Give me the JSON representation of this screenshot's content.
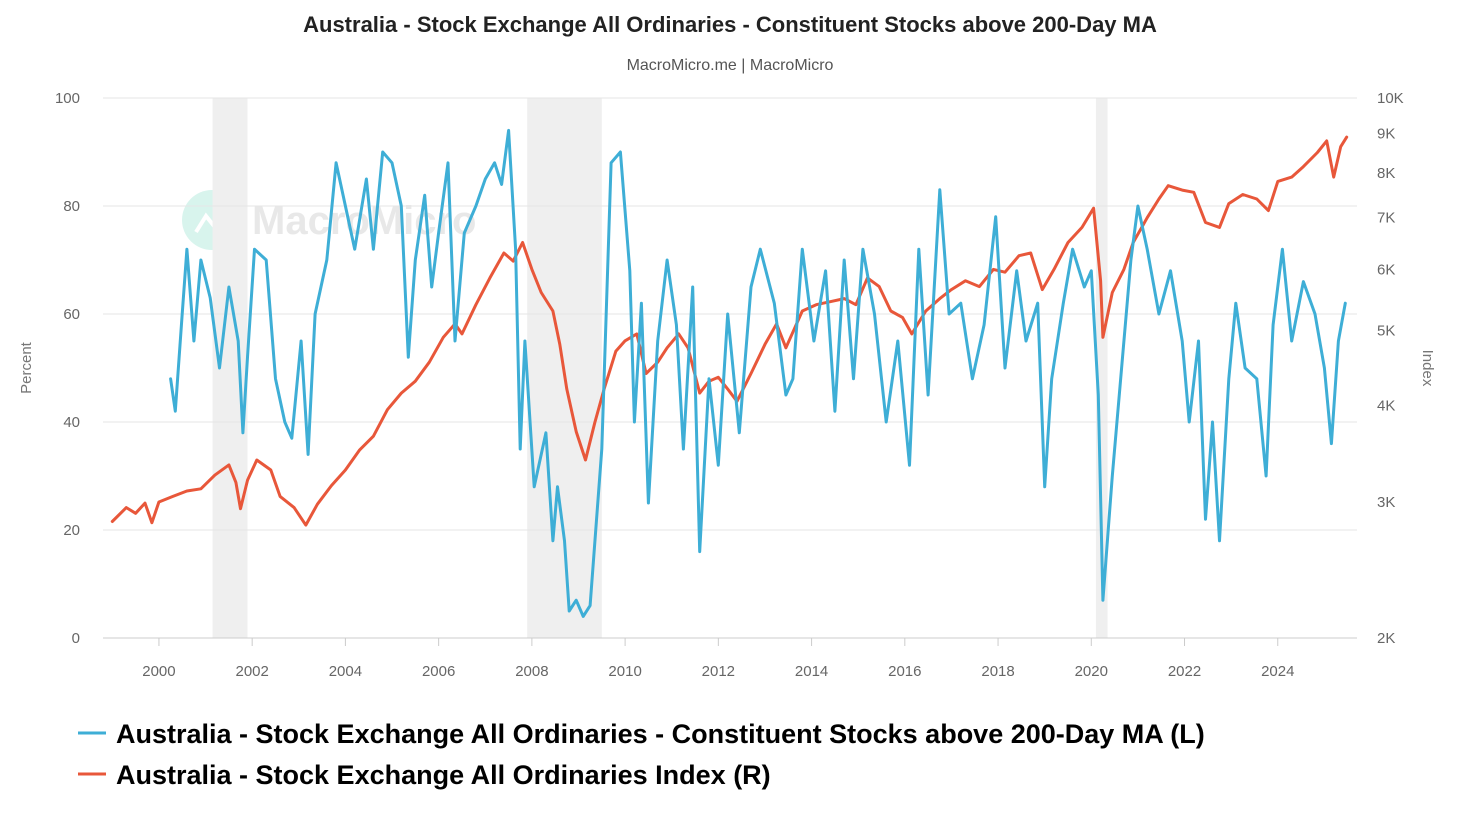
{
  "chart_data": {
    "type": "line",
    "title": "Australia - Stock Exchange All Ordinaries - Constituent Stocks above 200-Day MA",
    "subtitle": "MacroMicro.me | MacroMicro",
    "watermark": "MacroMicro",
    "x_ticks": [
      "2000",
      "2002",
      "2004",
      "2006",
      "2008",
      "2010",
      "2012",
      "2014",
      "2016",
      "2018",
      "2020",
      "2022",
      "2024"
    ],
    "xlim": [
      1998.8,
      2025.7
    ],
    "y_left": {
      "label": "Percent",
      "lim": [
        0,
        100
      ],
      "ticks": [
        "0",
        "20",
        "40",
        "60",
        "80",
        "100"
      ]
    },
    "y_right": {
      "label": "Index",
      "scale": "log",
      "lim": [
        2000,
        10000
      ],
      "ticks": [
        {
          "value": 2000,
          "label": "2K"
        },
        {
          "value": 3000,
          "label": "3K"
        },
        {
          "value": 4000,
          "label": "4K"
        },
        {
          "value": 5000,
          "label": "5K"
        },
        {
          "value": 6000,
          "label": "6K"
        },
        {
          "value": 7000,
          "label": "7K"
        },
        {
          "value": 8000,
          "label": "8K"
        },
        {
          "value": 9000,
          "label": "9K"
        },
        {
          "value": 10000,
          "label": "10K"
        }
      ]
    },
    "grid": true,
    "legend_position": "bottom-left",
    "recession_shading": [
      [
        2001.15,
        2001.9
      ],
      [
        2007.9,
        2009.5
      ],
      [
        2020.1,
        2020.35
      ]
    ],
    "series": [
      {
        "name": "Australia - Stock Exchange All Ordinaries - Constituent Stocks above 200-Day MA (L)",
        "axis": "left",
        "color": "#3eaed6",
        "points": [
          [
            2000.25,
            48
          ],
          [
            2000.35,
            42
          ],
          [
            2000.5,
            60
          ],
          [
            2000.6,
            72
          ],
          [
            2000.75,
            55
          ],
          [
            2000.9,
            70
          ],
          [
            2001.1,
            63
          ],
          [
            2001.3,
            50
          ],
          [
            2001.5,
            65
          ],
          [
            2001.7,
            55
          ],
          [
            2001.8,
            38
          ],
          [
            2001.9,
            52
          ],
          [
            2002.05,
            72
          ],
          [
            2002.3,
            70
          ],
          [
            2002.5,
            48
          ],
          [
            2002.7,
            40
          ],
          [
            2002.85,
            37
          ],
          [
            2003.05,
            55
          ],
          [
            2003.2,
            34
          ],
          [
            2003.35,
            60
          ],
          [
            2003.6,
            70
          ],
          [
            2003.8,
            88
          ],
          [
            2004.0,
            80
          ],
          [
            2004.2,
            72
          ],
          [
            2004.45,
            85
          ],
          [
            2004.6,
            72
          ],
          [
            2004.8,
            90
          ],
          [
            2005.0,
            88
          ],
          [
            2005.2,
            80
          ],
          [
            2005.35,
            52
          ],
          [
            2005.5,
            70
          ],
          [
            2005.7,
            82
          ],
          [
            2005.85,
            65
          ],
          [
            2006.0,
            75
          ],
          [
            2006.2,
            88
          ],
          [
            2006.35,
            55
          ],
          [
            2006.55,
            75
          ],
          [
            2006.8,
            80
          ],
          [
            2007.0,
            85
          ],
          [
            2007.2,
            88
          ],
          [
            2007.35,
            84
          ],
          [
            2007.5,
            94
          ],
          [
            2007.65,
            72
          ],
          [
            2007.75,
            35
          ],
          [
            2007.85,
            55
          ],
          [
            2008.05,
            28
          ],
          [
            2008.3,
            38
          ],
          [
            2008.45,
            18
          ],
          [
            2008.55,
            28
          ],
          [
            2008.7,
            18
          ],
          [
            2008.8,
            5
          ],
          [
            2008.95,
            7
          ],
          [
            2009.1,
            4
          ],
          [
            2009.25,
            6
          ],
          [
            2009.5,
            35
          ],
          [
            2009.7,
            88
          ],
          [
            2009.9,
            90
          ],
          [
            2010.1,
            68
          ],
          [
            2010.2,
            40
          ],
          [
            2010.35,
            62
          ],
          [
            2010.5,
            25
          ],
          [
            2010.7,
            55
          ],
          [
            2010.9,
            70
          ],
          [
            2011.1,
            58
          ],
          [
            2011.25,
            35
          ],
          [
            2011.45,
            65
          ],
          [
            2011.6,
            16
          ],
          [
            2011.8,
            48
          ],
          [
            2012.0,
            32
          ],
          [
            2012.2,
            60
          ],
          [
            2012.45,
            38
          ],
          [
            2012.7,
            65
          ],
          [
            2012.9,
            72
          ],
          [
            2013.2,
            62
          ],
          [
            2013.45,
            45
          ],
          [
            2013.6,
            48
          ],
          [
            2013.8,
            72
          ],
          [
            2014.05,
            55
          ],
          [
            2014.3,
            68
          ],
          [
            2014.5,
            42
          ],
          [
            2014.7,
            70
          ],
          [
            2014.9,
            48
          ],
          [
            2015.1,
            72
          ],
          [
            2015.35,
            60
          ],
          [
            2015.6,
            40
          ],
          [
            2015.85,
            55
          ],
          [
            2016.1,
            32
          ],
          [
            2016.3,
            72
          ],
          [
            2016.5,
            45
          ],
          [
            2016.75,
            83
          ],
          [
            2016.95,
            60
          ],
          [
            2017.2,
            62
          ],
          [
            2017.45,
            48
          ],
          [
            2017.7,
            58
          ],
          [
            2017.95,
            78
          ],
          [
            2018.15,
            50
          ],
          [
            2018.4,
            68
          ],
          [
            2018.6,
            55
          ],
          [
            2018.85,
            62
          ],
          [
            2019.0,
            28
          ],
          [
            2019.15,
            48
          ],
          [
            2019.4,
            62
          ],
          [
            2019.6,
            72
          ],
          [
            2019.85,
            65
          ],
          [
            2020.0,
            68
          ],
          [
            2020.15,
            45
          ],
          [
            2020.25,
            7
          ],
          [
            2020.45,
            30
          ],
          [
            2020.65,
            50
          ],
          [
            2020.85,
            70
          ],
          [
            2021.0,
            80
          ],
          [
            2021.2,
            72
          ],
          [
            2021.45,
            60
          ],
          [
            2021.7,
            68
          ],
          [
            2021.95,
            55
          ],
          [
            2022.1,
            40
          ],
          [
            2022.3,
            55
          ],
          [
            2022.45,
            22
          ],
          [
            2022.6,
            40
          ],
          [
            2022.75,
            18
          ],
          [
            2022.95,
            48
          ],
          [
            2023.1,
            62
          ],
          [
            2023.3,
            50
          ],
          [
            2023.55,
            48
          ],
          [
            2023.75,
            30
          ],
          [
            2023.9,
            58
          ],
          [
            2024.1,
            72
          ],
          [
            2024.3,
            55
          ],
          [
            2024.55,
            66
          ],
          [
            2024.8,
            60
          ],
          [
            2025.0,
            50
          ],
          [
            2025.15,
            36
          ],
          [
            2025.3,
            55
          ],
          [
            2025.45,
            62
          ]
        ]
      },
      {
        "name": "Australia - Stock Exchange All Ordinaries Index (R)",
        "axis": "right",
        "color": "#e8573a",
        "points": [
          [
            1999.0,
            2830
          ],
          [
            1999.3,
            2950
          ],
          [
            1999.5,
            2900
          ],
          [
            1999.7,
            2990
          ],
          [
            1999.85,
            2820
          ],
          [
            2000.0,
            3000
          ],
          [
            2000.3,
            3050
          ],
          [
            2000.6,
            3100
          ],
          [
            2000.9,
            3120
          ],
          [
            2001.2,
            3250
          ],
          [
            2001.5,
            3350
          ],
          [
            2001.65,
            3180
          ],
          [
            2001.75,
            2940
          ],
          [
            2001.9,
            3200
          ],
          [
            2002.1,
            3400
          ],
          [
            2002.4,
            3300
          ],
          [
            2002.6,
            3050
          ],
          [
            2002.9,
            2950
          ],
          [
            2003.15,
            2800
          ],
          [
            2003.4,
            2980
          ],
          [
            2003.7,
            3150
          ],
          [
            2004.0,
            3300
          ],
          [
            2004.3,
            3500
          ],
          [
            2004.6,
            3650
          ],
          [
            2004.9,
            3950
          ],
          [
            2005.2,
            4150
          ],
          [
            2005.5,
            4300
          ],
          [
            2005.8,
            4550
          ],
          [
            2006.1,
            4900
          ],
          [
            2006.35,
            5100
          ],
          [
            2006.5,
            4950
          ],
          [
            2006.8,
            5400
          ],
          [
            2007.1,
            5850
          ],
          [
            2007.4,
            6300
          ],
          [
            2007.6,
            6150
          ],
          [
            2007.8,
            6500
          ],
          [
            2008.0,
            6000
          ],
          [
            2008.2,
            5600
          ],
          [
            2008.45,
            5300
          ],
          [
            2008.6,
            4800
          ],
          [
            2008.75,
            4200
          ],
          [
            2008.95,
            3700
          ],
          [
            2009.15,
            3400
          ],
          [
            2009.35,
            3800
          ],
          [
            2009.55,
            4200
          ],
          [
            2009.8,
            4700
          ],
          [
            2010.0,
            4850
          ],
          [
            2010.25,
            4950
          ],
          [
            2010.45,
            4400
          ],
          [
            2010.7,
            4550
          ],
          [
            2010.9,
            4750
          ],
          [
            2011.15,
            4950
          ],
          [
            2011.35,
            4750
          ],
          [
            2011.6,
            4150
          ],
          [
            2011.8,
            4300
          ],
          [
            2012.0,
            4350
          ],
          [
            2012.2,
            4200
          ],
          [
            2012.4,
            4050
          ],
          [
            2012.7,
            4400
          ],
          [
            2013.0,
            4800
          ],
          [
            2013.25,
            5100
          ],
          [
            2013.45,
            4750
          ],
          [
            2013.8,
            5300
          ],
          [
            2014.1,
            5400
          ],
          [
            2014.4,
            5450
          ],
          [
            2014.7,
            5500
          ],
          [
            2014.95,
            5400
          ],
          [
            2015.2,
            5850
          ],
          [
            2015.45,
            5700
          ],
          [
            2015.7,
            5300
          ],
          [
            2015.95,
            5200
          ],
          [
            2016.15,
            4950
          ],
          [
            2016.45,
            5300
          ],
          [
            2016.75,
            5500
          ],
          [
            2017.0,
            5650
          ],
          [
            2017.3,
            5800
          ],
          [
            2017.6,
            5700
          ],
          [
            2017.9,
            6000
          ],
          [
            2018.15,
            5950
          ],
          [
            2018.45,
            6250
          ],
          [
            2018.7,
            6300
          ],
          [
            2018.95,
            5650
          ],
          [
            2019.2,
            6000
          ],
          [
            2019.5,
            6500
          ],
          [
            2019.8,
            6800
          ],
          [
            2020.05,
            7200
          ],
          [
            2020.2,
            5800
          ],
          [
            2020.25,
            4900
          ],
          [
            2020.45,
            5600
          ],
          [
            2020.7,
            6000
          ],
          [
            2020.9,
            6500
          ],
          [
            2021.2,
            7000
          ],
          [
            2021.45,
            7400
          ],
          [
            2021.65,
            7700
          ],
          [
            2021.95,
            7600
          ],
          [
            2022.2,
            7550
          ],
          [
            2022.45,
            6900
          ],
          [
            2022.75,
            6800
          ],
          [
            2022.95,
            7300
          ],
          [
            2023.25,
            7500
          ],
          [
            2023.55,
            7400
          ],
          [
            2023.8,
            7150
          ],
          [
            2024.0,
            7800
          ],
          [
            2024.3,
            7900
          ],
          [
            2024.55,
            8150
          ],
          [
            2024.85,
            8500
          ],
          [
            2025.05,
            8800
          ],
          [
            2025.2,
            7900
          ],
          [
            2025.35,
            8650
          ],
          [
            2025.48,
            8900
          ]
        ]
      }
    ]
  }
}
